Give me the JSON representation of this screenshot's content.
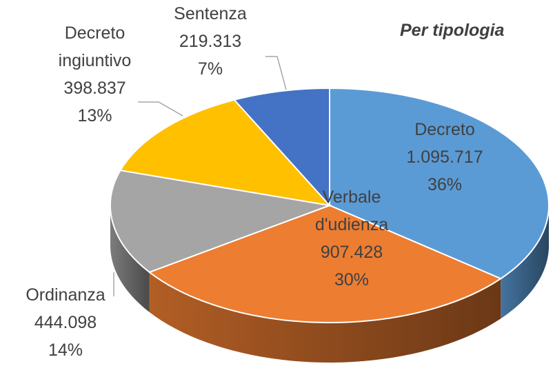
{
  "chart_data": {
    "type": "pie3d",
    "title": "Per tipologia",
    "categories": [
      "Decreto",
      "Verbale d'udienza",
      "Ordinanza",
      "Decreto ingiuntivo",
      "Sentenza"
    ],
    "values": [
      1095717,
      907428,
      444098,
      398837,
      219313
    ],
    "value_labels": [
      "1.095.717",
      "907.428",
      "444.098",
      "398.837",
      "219.313"
    ],
    "percentages": [
      36,
      30,
      14,
      13,
      7
    ],
    "percentage_labels": [
      "36%",
      "30%",
      "14%",
      "13%",
      "7%"
    ],
    "colors": [
      "#5b9bd5",
      "#ed7d31",
      "#a5a5a5",
      "#ffc000",
      "#4472c4"
    ]
  }
}
